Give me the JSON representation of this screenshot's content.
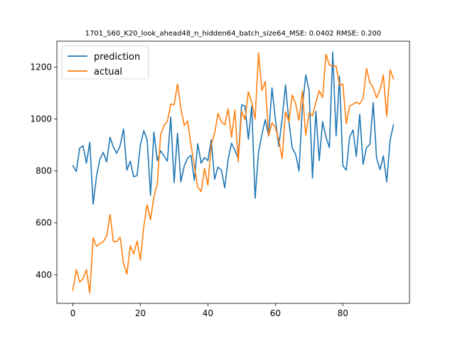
{
  "chart_data": {
    "type": "line",
    "title": "1701_S60_K20_look_ahead48_n_hidden64_batch_size64_MSE: 0.0402 RMSE: 0.200",
    "xlim": [
      -4.75,
      99.75
    ],
    "ylim": [
      290,
      1300
    ],
    "x_ticks": [
      0,
      20,
      40,
      60,
      80
    ],
    "y_ticks": [
      400,
      600,
      800,
      1000,
      1200
    ],
    "legend_position": "top-left",
    "grid": false,
    "series": [
      {
        "name": "prediction",
        "color": "#1f77b4",
        "values": [
          820,
          798,
          888,
          897,
          830,
          910,
          672,
          780,
          845,
          872,
          835,
          930,
          892,
          868,
          898,
          962,
          803,
          838,
          778,
          782,
          900,
          955,
          920,
          706,
          950,
          840,
          878,
          858,
          838,
          1008,
          755,
          945,
          758,
          820,
          850,
          860,
          764,
          905,
          830,
          852,
          840,
          920,
          768,
          815,
          803,
          735,
          845,
          907,
          880,
          848,
          1055,
          1050,
          922,
          1050,
          695,
          872,
          940,
          998,
          935,
          1120,
          1000,
          895,
          1000,
          1132,
          990,
          888,
          865,
          800,
          1045,
          1170,
          1110,
          773,
          1030,
          840,
          990,
          930,
          890,
          1258,
          935,
          1165,
          820,
          803,
          930,
          958,
          856,
          1018,
          826,
          890,
          902,
          1063,
          850,
          805,
          858,
          758,
          918,
          978
        ]
      },
      {
        "name": "actual",
        "color": "#ff7f0e",
        "values": [
          340,
          420,
          372,
          385,
          420,
          330,
          542,
          510,
          520,
          528,
          548,
          632,
          528,
          528,
          545,
          445,
          403,
          512,
          480,
          530,
          457,
          585,
          670,
          612,
          700,
          750,
          940,
          975,
          992,
          1058,
          1055,
          1135,
          1040,
          975,
          993,
          900,
          820,
          738,
          720,
          810,
          745,
          900,
          945,
          1022,
          990,
          978,
          1040,
          930,
          1035,
          835,
          1030,
          998,
          1105,
          1065,
          1000,
          1255,
          1110,
          1145,
          935,
          985,
          968,
          920,
          848,
          1028,
          990,
          1093,
          1060,
          995,
          1108,
          938,
          1025,
          1012,
          1065,
          1110,
          1083,
          1250,
          1208,
          1205,
          1205,
          1130,
          1135,
          982,
          1050,
          1058,
          1065,
          1058,
          1080,
          1195,
          1140,
          1120,
          1082,
          1112,
          1170,
          1010,
          1190,
          1155
        ]
      }
    ]
  }
}
